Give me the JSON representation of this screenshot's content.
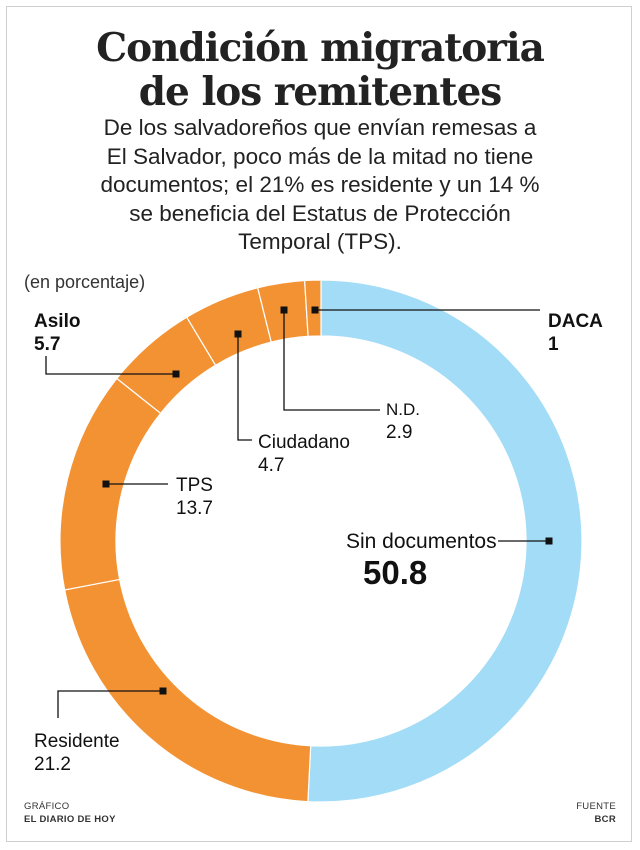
{
  "header": {
    "title_line1": "Condición migratoria",
    "title_line2": "de los remitentes",
    "subtitle_lines": [
      "De los salvadoreños que envían remesas a",
      "El Salvador, poco más de la mitad no tiene",
      "documentos; el 21% es residente y un 14 %",
      "se beneficia del Estatus de Protección",
      "Temporal (TPS)."
    ],
    "unit": "(en porcentaje)"
  },
  "chart_data": {
    "type": "pie",
    "variant": "donut",
    "title": "Condición migratoria de los remitentes",
    "unit": "(en porcentaje)",
    "slices": [
      {
        "label": "Sin documentos",
        "value": 50.8,
        "display": "50.8",
        "color": "#a3dcf6"
      },
      {
        "label": "Residente",
        "value": 21.2,
        "display": "21.2",
        "color": "#f39233"
      },
      {
        "label": "TPS",
        "value": 13.7,
        "display": "13.7",
        "color": "#f39233"
      },
      {
        "label": "Asilo",
        "value": 5.7,
        "display": "5.7",
        "color": "#f39233"
      },
      {
        "label": "Ciudadano",
        "value": 4.7,
        "display": "4.7",
        "color": "#f39233"
      },
      {
        "label": "N.D.",
        "value": 2.9,
        "display": "2.9",
        "color": "#f39233"
      },
      {
        "label": "DACA",
        "value": 1,
        "display": "1",
        "color": "#f39233"
      }
    ]
  },
  "footer": {
    "left_label": "GRÁFICO",
    "left_value": "EL DIARIO DE HOY",
    "right_label": "FUENTE",
    "right_value": "BCR"
  }
}
